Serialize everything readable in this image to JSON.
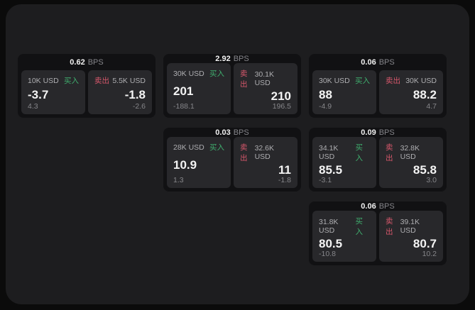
{
  "labels": {
    "buy": "买入",
    "sell": "卖出",
    "bps": "BPS"
  },
  "colors": {
    "buy_green": "#3fae6e",
    "sell_red": "#d6576b",
    "panel": "#1d1d1f",
    "card": "#111113",
    "subcard": "#28282b"
  },
  "cards": [
    {
      "bps": "0.62",
      "buy": {
        "amount": "10K USD",
        "value": "-3.7",
        "delta": "4.3"
      },
      "sell": {
        "amount": "5.5K USD",
        "value": "-1.8",
        "delta": "-2.6"
      }
    },
    {
      "bps": "2.92",
      "buy": {
        "amount": "30K USD",
        "value": "201",
        "delta": "-188.1"
      },
      "sell": {
        "amount": "30.1K USD",
        "value": "210",
        "delta": "196.5"
      }
    },
    {
      "bps": "0.06",
      "buy": {
        "amount": "30K USD",
        "value": "88",
        "delta": "-4.9"
      },
      "sell": {
        "amount": "30K USD",
        "value": "88.2",
        "delta": "4.7"
      }
    },
    {
      "bps": "0.03",
      "buy": {
        "amount": "28K USD",
        "value": "10.9",
        "delta": "1.3"
      },
      "sell": {
        "amount": "32.6K USD",
        "value": "11",
        "delta": "-1.8"
      }
    },
    {
      "bps": "0.09",
      "buy": {
        "amount": "34.1K USD",
        "value": "85.5",
        "delta": "-3.1"
      },
      "sell": {
        "amount": "32.8K USD",
        "value": "85.8",
        "delta": "3.0"
      }
    },
    {
      "bps": "0.06",
      "buy": {
        "amount": "31.8K USD",
        "value": "80.5",
        "delta": "-10.8"
      },
      "sell": {
        "amount": "39.1K USD",
        "value": "80.7",
        "delta": "10.2"
      }
    }
  ]
}
